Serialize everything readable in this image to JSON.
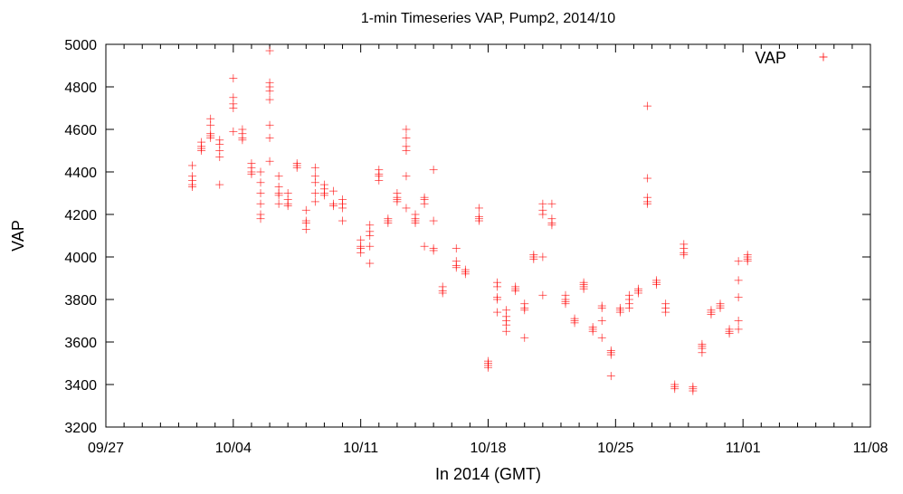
{
  "chart_data": {
    "type": "scatter",
    "title": "1-min Timeseries VAP, Pump2, 2014/10",
    "xlabel": "In 2014 (GMT)",
    "ylabel": "VAP",
    "xlim": [
      "2014-09-27",
      "2014-11-08"
    ],
    "ylim": [
      3200,
      5000
    ],
    "xticks": [
      "09/27",
      "10/04",
      "10/11",
      "10/18",
      "10/25",
      "11/01",
      "11/08"
    ],
    "yticks": [
      3200,
      3400,
      3600,
      3800,
      4000,
      4200,
      4400,
      4600,
      4800,
      5000
    ],
    "grid": false,
    "legend": "top-right",
    "marker": "+",
    "series": [
      {
        "name": "VAP",
        "color": "#ff0000",
        "points": [
          [
            "2014-10-01T18:00",
            4360
          ],
          [
            "2014-10-01T18:00",
            4380
          ],
          [
            "2014-10-01T18:00",
            4340
          ],
          [
            "2014-10-01T18:00",
            4430
          ],
          [
            "2014-10-01T18:00",
            4330
          ],
          [
            "2014-10-02T06:00",
            4510
          ],
          [
            "2014-10-02T06:00",
            4520
          ],
          [
            "2014-10-02T06:00",
            4500
          ],
          [
            "2014-10-02T06:00",
            4540
          ],
          [
            "2014-10-02T18:00",
            4570
          ],
          [
            "2014-10-02T18:00",
            4580
          ],
          [
            "2014-10-02T18:00",
            4560
          ],
          [
            "2014-10-02T18:00",
            4620
          ],
          [
            "2014-10-02T18:00",
            4650
          ],
          [
            "2014-10-03T06:00",
            4500
          ],
          [
            "2014-10-03T06:00",
            4470
          ],
          [
            "2014-10-03T06:00",
            4530
          ],
          [
            "2014-10-03T06:00",
            4340
          ],
          [
            "2014-10-03T06:00",
            4550
          ],
          [
            "2014-10-04T00:00",
            4700
          ],
          [
            "2014-10-04T00:00",
            4720
          ],
          [
            "2014-10-04T00:00",
            4750
          ],
          [
            "2014-10-04T00:00",
            4840
          ],
          [
            "2014-10-04T00:00",
            4590
          ],
          [
            "2014-10-04T12:00",
            4560
          ],
          [
            "2014-10-04T12:00",
            4550
          ],
          [
            "2014-10-04T12:00",
            4580
          ],
          [
            "2014-10-04T12:00",
            4600
          ],
          [
            "2014-10-05T00:00",
            4400
          ],
          [
            "2014-10-05T00:00",
            4390
          ],
          [
            "2014-10-05T00:00",
            4420
          ],
          [
            "2014-10-05T00:00",
            4440
          ],
          [
            "2014-10-05T12:00",
            4350
          ],
          [
            "2014-10-05T12:00",
            4300
          ],
          [
            "2014-10-05T12:00",
            4250
          ],
          [
            "2014-10-05T12:00",
            4200
          ],
          [
            "2014-10-05T12:00",
            4180
          ],
          [
            "2014-10-05T12:00",
            4400
          ],
          [
            "2014-10-06T00:00",
            4780
          ],
          [
            "2014-10-06T00:00",
            4800
          ],
          [
            "2014-10-06T00:00",
            4820
          ],
          [
            "2014-10-06T00:00",
            4740
          ],
          [
            "2014-10-06T00:00",
            4620
          ],
          [
            "2014-10-06T00:00",
            4560
          ],
          [
            "2014-10-06T00:00",
            4970
          ],
          [
            "2014-10-06T00:00",
            4450
          ],
          [
            "2014-10-06T12:00",
            4300
          ],
          [
            "2014-10-06T12:00",
            4290
          ],
          [
            "2014-10-06T12:00",
            4330
          ],
          [
            "2014-10-06T12:00",
            4380
          ],
          [
            "2014-10-06T12:00",
            4250
          ],
          [
            "2014-10-07T00:00",
            4250
          ],
          [
            "2014-10-07T00:00",
            4240
          ],
          [
            "2014-10-07T00:00",
            4270
          ],
          [
            "2014-10-07T00:00",
            4300
          ],
          [
            "2014-10-07T12:00",
            4430
          ],
          [
            "2014-10-07T12:00",
            4440
          ],
          [
            "2014-10-07T12:00",
            4420
          ],
          [
            "2014-10-08T00:00",
            4160
          ],
          [
            "2014-10-08T00:00",
            4170
          ],
          [
            "2014-10-08T00:00",
            4130
          ],
          [
            "2014-10-08T00:00",
            4220
          ],
          [
            "2014-10-08T12:00",
            4380
          ],
          [
            "2014-10-08T12:00",
            4350
          ],
          [
            "2014-10-08T12:00",
            4300
          ],
          [
            "2014-10-08T12:00",
            4420
          ],
          [
            "2014-10-08T12:00",
            4260
          ],
          [
            "2014-10-09T00:00",
            4300
          ],
          [
            "2014-10-09T00:00",
            4290
          ],
          [
            "2014-10-09T00:00",
            4320
          ],
          [
            "2014-10-09T00:00",
            4340
          ],
          [
            "2014-10-09T12:00",
            4250
          ],
          [
            "2014-10-09T12:00",
            4240
          ],
          [
            "2014-10-09T12:00",
            4310
          ],
          [
            "2014-10-10T00:00",
            4250
          ],
          [
            "2014-10-10T00:00",
            4230
          ],
          [
            "2014-10-10T00:00",
            4270
          ],
          [
            "2014-10-10T00:00",
            4170
          ],
          [
            "2014-10-11T00:00",
            4040
          ],
          [
            "2014-10-11T00:00",
            4050
          ],
          [
            "2014-10-11T00:00",
            4020
          ],
          [
            "2014-10-11T00:00",
            4080
          ],
          [
            "2014-10-11T12:00",
            4100
          ],
          [
            "2014-10-11T12:00",
            4120
          ],
          [
            "2014-10-11T12:00",
            4050
          ],
          [
            "2014-10-11T12:00",
            4150
          ],
          [
            "2014-10-11T12:00",
            3970
          ],
          [
            "2014-10-12T00:00",
            4380
          ],
          [
            "2014-10-12T00:00",
            4390
          ],
          [
            "2014-10-12T00:00",
            4360
          ],
          [
            "2014-10-12T00:00",
            4410
          ],
          [
            "2014-10-12T12:00",
            4170
          ],
          [
            "2014-10-12T12:00",
            4160
          ],
          [
            "2014-10-12T12:00",
            4180
          ],
          [
            "2014-10-13T00:00",
            4270
          ],
          [
            "2014-10-13T00:00",
            4280
          ],
          [
            "2014-10-13T00:00",
            4300
          ],
          [
            "2014-10-13T00:00",
            4260
          ],
          [
            "2014-10-13T12:00",
            4520
          ],
          [
            "2014-10-13T12:00",
            4500
          ],
          [
            "2014-10-13T12:00",
            4560
          ],
          [
            "2014-10-13T12:00",
            4600
          ],
          [
            "2014-10-13T12:00",
            4380
          ],
          [
            "2014-10-13T12:00",
            4230
          ],
          [
            "2014-10-14T00:00",
            4170
          ],
          [
            "2014-10-14T00:00",
            4160
          ],
          [
            "2014-10-14T00:00",
            4180
          ],
          [
            "2014-10-14T00:00",
            4200
          ],
          [
            "2014-10-14T12:00",
            4270
          ],
          [
            "2014-10-14T12:00",
            4280
          ],
          [
            "2014-10-14T12:00",
            4250
          ],
          [
            "2014-10-14T12:00",
            4050
          ],
          [
            "2014-10-15T00:00",
            4040
          ],
          [
            "2014-10-15T00:00",
            4030
          ],
          [
            "2014-10-15T00:00",
            4170
          ],
          [
            "2014-10-15T00:00",
            4410
          ],
          [
            "2014-10-15T12:00",
            3840
          ],
          [
            "2014-10-15T12:00",
            3830
          ],
          [
            "2014-10-15T12:00",
            3860
          ],
          [
            "2014-10-16T06:00",
            3960
          ],
          [
            "2014-10-16T06:00",
            3950
          ],
          [
            "2014-10-16T06:00",
            3980
          ],
          [
            "2014-10-16T06:00",
            4040
          ],
          [
            "2014-10-16T18:00",
            3930
          ],
          [
            "2014-10-16T18:00",
            3940
          ],
          [
            "2014-10-16T18:00",
            3920
          ],
          [
            "2014-10-17T12:00",
            4180
          ],
          [
            "2014-10-17T12:00",
            4190
          ],
          [
            "2014-10-17T12:00",
            4170
          ],
          [
            "2014-10-17T12:00",
            4230
          ],
          [
            "2014-10-18T00:00",
            3490
          ],
          [
            "2014-10-18T00:00",
            3480
          ],
          [
            "2014-10-18T00:00",
            3500
          ],
          [
            "2014-10-18T00:00",
            3510
          ],
          [
            "2014-10-18T12:00",
            3810
          ],
          [
            "2014-10-18T12:00",
            3800
          ],
          [
            "2014-10-18T12:00",
            3860
          ],
          [
            "2014-10-18T12:00",
            3880
          ],
          [
            "2014-10-18T12:00",
            3740
          ],
          [
            "2014-10-19T00:00",
            3700
          ],
          [
            "2014-10-19T00:00",
            3680
          ],
          [
            "2014-10-19T00:00",
            3720
          ],
          [
            "2014-10-19T00:00",
            3650
          ],
          [
            "2014-10-19T00:00",
            3750
          ],
          [
            "2014-10-19T12:00",
            3850
          ],
          [
            "2014-10-19T12:00",
            3840
          ],
          [
            "2014-10-19T12:00",
            3860
          ],
          [
            "2014-10-20T00:00",
            3760
          ],
          [
            "2014-10-20T00:00",
            3750
          ],
          [
            "2014-10-20T00:00",
            3780
          ],
          [
            "2014-10-20T00:00",
            3620
          ],
          [
            "2014-10-20T12:00",
            4000
          ],
          [
            "2014-10-20T12:00",
            3990
          ],
          [
            "2014-10-20T12:00",
            4010
          ],
          [
            "2014-10-21T00:00",
            4200
          ],
          [
            "2014-10-21T00:00",
            4220
          ],
          [
            "2014-10-21T00:00",
            4250
          ],
          [
            "2014-10-21T00:00",
            4000
          ],
          [
            "2014-10-21T00:00",
            3820
          ],
          [
            "2014-10-21T12:00",
            4160
          ],
          [
            "2014-10-21T12:00",
            4150
          ],
          [
            "2014-10-21T12:00",
            4180
          ],
          [
            "2014-10-21T12:00",
            4250
          ],
          [
            "2014-10-22T06:00",
            3800
          ],
          [
            "2014-10-22T06:00",
            3790
          ],
          [
            "2014-10-22T06:00",
            3820
          ],
          [
            "2014-10-22T06:00",
            3780
          ],
          [
            "2014-10-22T18:00",
            3700
          ],
          [
            "2014-10-22T18:00",
            3690
          ],
          [
            "2014-10-22T18:00",
            3710
          ],
          [
            "2014-10-23T06:00",
            3860
          ],
          [
            "2014-10-23T06:00",
            3870
          ],
          [
            "2014-10-23T06:00",
            3850
          ],
          [
            "2014-10-23T06:00",
            3880
          ],
          [
            "2014-10-23T18:00",
            3660
          ],
          [
            "2014-10-23T18:00",
            3650
          ],
          [
            "2014-10-23T18:00",
            3670
          ],
          [
            "2014-10-24T06:00",
            3760
          ],
          [
            "2014-10-24T06:00",
            3770
          ],
          [
            "2014-10-24T06:00",
            3700
          ],
          [
            "2014-10-24T06:00",
            3620
          ],
          [
            "2014-10-24T18:00",
            3550
          ],
          [
            "2014-10-24T18:00",
            3540
          ],
          [
            "2014-10-24T18:00",
            3560
          ],
          [
            "2014-10-24T18:00",
            3440
          ],
          [
            "2014-10-25T06:00",
            3750
          ],
          [
            "2014-10-25T06:00",
            3740
          ],
          [
            "2014-10-25T06:00",
            3760
          ],
          [
            "2014-10-25T18:00",
            3780
          ],
          [
            "2014-10-25T18:00",
            3800
          ],
          [
            "2014-10-25T18:00",
            3820
          ],
          [
            "2014-10-25T18:00",
            3760
          ],
          [
            "2014-10-26T06:00",
            3840
          ],
          [
            "2014-10-26T06:00",
            3830
          ],
          [
            "2014-10-26T06:00",
            3850
          ],
          [
            "2014-10-26T18:00",
            4260
          ],
          [
            "2014-10-26T18:00",
            4250
          ],
          [
            "2014-10-26T18:00",
            4280
          ],
          [
            "2014-10-26T18:00",
            4370
          ],
          [
            "2014-10-26T18:00",
            4710
          ],
          [
            "2014-10-27T06:00",
            3880
          ],
          [
            "2014-10-27T06:00",
            3870
          ],
          [
            "2014-10-27T06:00",
            3890
          ],
          [
            "2014-10-27T18:00",
            3760
          ],
          [
            "2014-10-27T18:00",
            3740
          ],
          [
            "2014-10-27T18:00",
            3780
          ],
          [
            "2014-10-28T06:00",
            3390
          ],
          [
            "2014-10-28T06:00",
            3380
          ],
          [
            "2014-10-28T06:00",
            3400
          ],
          [
            "2014-10-28T18:00",
            4020
          ],
          [
            "2014-10-28T18:00",
            4010
          ],
          [
            "2014-10-28T18:00",
            4040
          ],
          [
            "2014-10-28T18:00",
            4060
          ],
          [
            "2014-10-29T06:00",
            3380
          ],
          [
            "2014-10-29T06:00",
            3370
          ],
          [
            "2014-10-29T06:00",
            3390
          ],
          [
            "2014-10-29T18:00",
            3580
          ],
          [
            "2014-10-29T18:00",
            3570
          ],
          [
            "2014-10-29T18:00",
            3550
          ],
          [
            "2014-10-29T18:00",
            3590
          ],
          [
            "2014-10-30T06:00",
            3740
          ],
          [
            "2014-10-30T06:00",
            3750
          ],
          [
            "2014-10-30T06:00",
            3730
          ],
          [
            "2014-10-30T18:00",
            3770
          ],
          [
            "2014-10-30T18:00",
            3780
          ],
          [
            "2014-10-30T18:00",
            3760
          ],
          [
            "2014-10-31T06:00",
            3650
          ],
          [
            "2014-10-31T06:00",
            3660
          ],
          [
            "2014-10-31T06:00",
            3640
          ],
          [
            "2014-10-31T18:00",
            3890
          ],
          [
            "2014-10-31T18:00",
            3980
          ],
          [
            "2014-10-31T18:00",
            3810
          ],
          [
            "2014-10-31T18:00",
            3700
          ],
          [
            "2014-10-31T18:00",
            3660
          ],
          [
            "2014-11-01T06:00",
            3990
          ],
          [
            "2014-11-01T06:00",
            4000
          ],
          [
            "2014-11-01T06:00",
            3980
          ],
          [
            "2014-11-01T06:00",
            4010
          ]
        ]
      }
    ]
  }
}
